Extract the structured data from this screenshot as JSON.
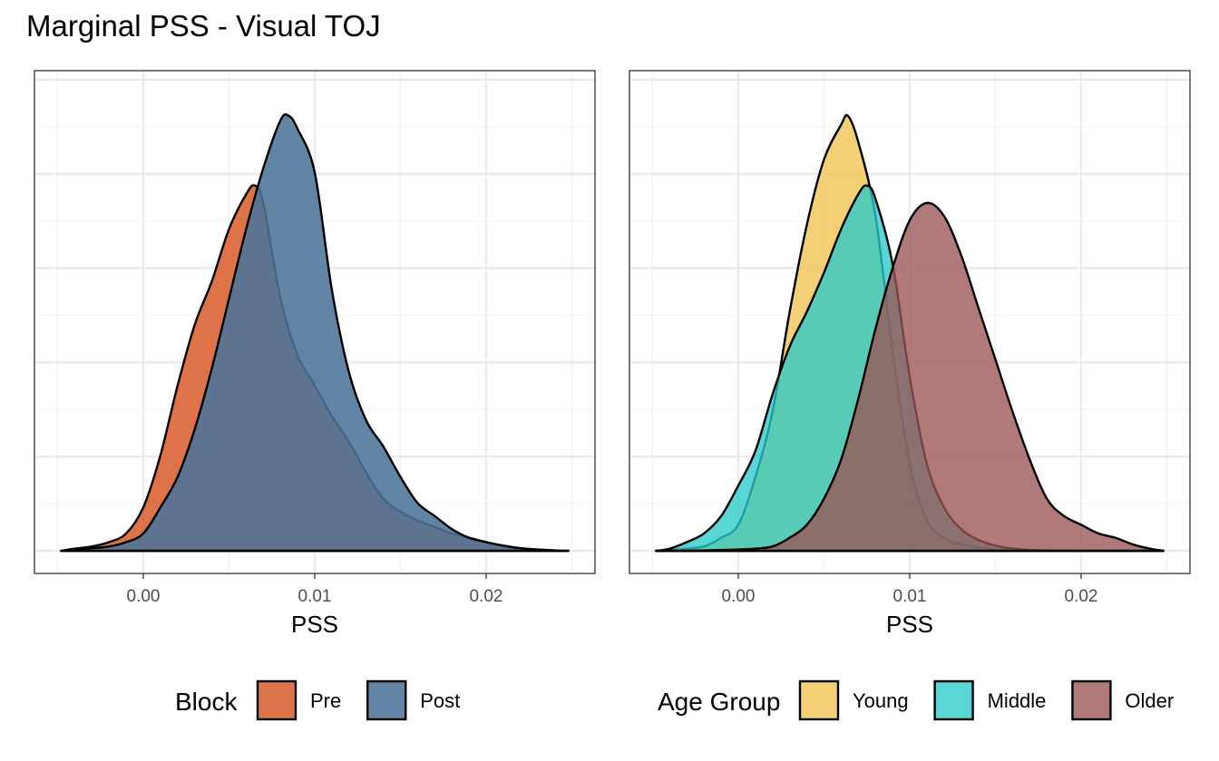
{
  "title": "Marginal PSS - Visual TOJ",
  "chart_data": [
    {
      "type": "area",
      "subtype": "density",
      "xlabel": "PSS",
      "ylabel": "",
      "xlim": [
        -0.005,
        0.025
      ],
      "ylim": [
        0,
        1.05
      ],
      "x_ticks": [
        0.0,
        0.01,
        0.02
      ],
      "x_tick_labels": [
        "0.00",
        "0.01",
        "0.02"
      ],
      "y_ticks_labeled": false,
      "grid": true,
      "legend": {
        "title": "Block",
        "position": "bottom"
      },
      "series": [
        {
          "name": "Pre",
          "color": "#D95F30",
          "x": [
            -0.0048,
            -0.004,
            -0.003,
            -0.002,
            -0.001,
            0.0,
            0.001,
            0.002,
            0.003,
            0.004,
            0.005,
            0.006,
            0.0065,
            0.007,
            0.008,
            0.009,
            0.01,
            0.011,
            0.012,
            0.013,
            0.014,
            0.015,
            0.016,
            0.017,
            0.018,
            0.019,
            0.02,
            0.021,
            0.022,
            0.023,
            0.024,
            0.0248
          ],
          "y": [
            0.0,
            0.005,
            0.01,
            0.02,
            0.04,
            0.1,
            0.22,
            0.38,
            0.52,
            0.62,
            0.74,
            0.82,
            0.84,
            0.8,
            0.58,
            0.45,
            0.38,
            0.31,
            0.25,
            0.18,
            0.12,
            0.09,
            0.07,
            0.055,
            0.04,
            0.03,
            0.02,
            0.01,
            0.005,
            0.003,
            0.001,
            0.0
          ]
        },
        {
          "name": "Post",
          "color": "#4C7398",
          "x": [
            -0.0048,
            -0.004,
            -0.003,
            -0.002,
            -0.001,
            0.0,
            0.001,
            0.002,
            0.003,
            0.004,
            0.005,
            0.006,
            0.007,
            0.008,
            0.0085,
            0.009,
            0.01,
            0.011,
            0.012,
            0.013,
            0.014,
            0.015,
            0.016,
            0.017,
            0.018,
            0.019,
            0.02,
            0.021,
            0.022,
            0.023,
            0.024,
            0.0248
          ],
          "y": [
            0.0,
            0.003,
            0.006,
            0.01,
            0.02,
            0.04,
            0.1,
            0.17,
            0.28,
            0.42,
            0.58,
            0.74,
            0.88,
            0.99,
            1.0,
            0.97,
            0.87,
            0.6,
            0.41,
            0.3,
            0.24,
            0.17,
            0.11,
            0.08,
            0.05,
            0.03,
            0.02,
            0.012,
            0.006,
            0.003,
            0.001,
            0.0
          ]
        }
      ]
    },
    {
      "type": "area",
      "subtype": "density",
      "xlabel": "PSS",
      "ylabel": "",
      "xlim": [
        -0.005,
        0.025
      ],
      "ylim": [
        0,
        1.05
      ],
      "x_ticks": [
        0.0,
        0.01,
        0.02
      ],
      "x_tick_labels": [
        "0.00",
        "0.01",
        "0.02"
      ],
      "y_ticks_labeled": false,
      "grid": true,
      "legend": {
        "title": "Age Group",
        "position": "bottom"
      },
      "series": [
        {
          "name": "Young",
          "color": "#F0C24F",
          "x": [
            -0.0048,
            -0.004,
            -0.003,
            -0.002,
            -0.001,
            0.0,
            0.001,
            0.002,
            0.003,
            0.004,
            0.005,
            0.006,
            0.0064,
            0.007,
            0.008,
            0.009,
            0.01,
            0.011,
            0.012,
            0.013,
            0.014,
            0.015,
            0.016,
            0.017,
            0.018,
            0.019,
            0.02,
            0.021,
            0.022,
            0.023,
            0.024,
            0.0248
          ],
          "y": [
            0.0,
            0.002,
            0.005,
            0.01,
            0.03,
            0.06,
            0.17,
            0.32,
            0.55,
            0.75,
            0.9,
            0.98,
            1.0,
            0.94,
            0.77,
            0.46,
            0.2,
            0.07,
            0.03,
            0.015,
            0.008,
            0.004,
            0.002,
            0.001,
            0.0005,
            0.0002,
            0.0001,
            0.0,
            0.0,
            0.0,
            0.0,
            0.0
          ]
        },
        {
          "name": "Middle",
          "color": "#2CC9C9",
          "x": [
            -0.0048,
            -0.004,
            -0.003,
            -0.002,
            -0.001,
            0.0,
            0.001,
            0.002,
            0.003,
            0.004,
            0.005,
            0.006,
            0.007,
            0.0075,
            0.008,
            0.009,
            0.01,
            0.011,
            0.012,
            0.013,
            0.014,
            0.015,
            0.016,
            0.017,
            0.018,
            0.019,
            0.02,
            0.021,
            0.022,
            0.023,
            0.024,
            0.0248
          ],
          "y": [
            0.0,
            0.005,
            0.02,
            0.04,
            0.08,
            0.15,
            0.23,
            0.36,
            0.47,
            0.55,
            0.64,
            0.74,
            0.82,
            0.84,
            0.81,
            0.66,
            0.4,
            0.2,
            0.1,
            0.05,
            0.025,
            0.012,
            0.005,
            0.002,
            0.001,
            0.0005,
            0.0002,
            0.0001,
            0.0,
            0.0,
            0.0,
            0.0
          ]
        },
        {
          "name": "Older",
          "color": "#9A5454",
          "x": [
            -0.0048,
            -0.004,
            -0.003,
            -0.002,
            -0.001,
            0.0,
            0.001,
            0.002,
            0.003,
            0.004,
            0.005,
            0.006,
            0.007,
            0.008,
            0.009,
            0.01,
            0.011,
            0.012,
            0.013,
            0.014,
            0.015,
            0.016,
            0.017,
            0.018,
            0.019,
            0.02,
            0.021,
            0.022,
            0.023,
            0.024,
            0.0248
          ],
          "y": [
            0.0,
            0.0,
            0.0,
            0.001,
            0.002,
            0.003,
            0.005,
            0.01,
            0.03,
            0.06,
            0.12,
            0.21,
            0.35,
            0.51,
            0.65,
            0.76,
            0.8,
            0.77,
            0.68,
            0.56,
            0.44,
            0.32,
            0.21,
            0.12,
            0.08,
            0.06,
            0.04,
            0.03,
            0.015,
            0.005,
            0.0
          ]
        }
      ]
    }
  ]
}
